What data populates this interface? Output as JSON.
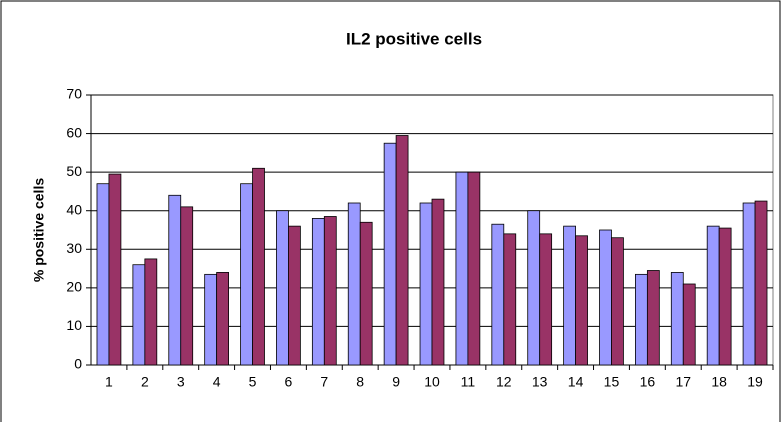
{
  "chart_data": {
    "type": "bar",
    "title": "IL2 positive cells",
    "y_label": "% positive cells",
    "categories": [
      "1",
      "2",
      "3",
      "4",
      "5",
      "6",
      "7",
      "8",
      "9",
      "10",
      "11",
      "12",
      "13",
      "14",
      "15",
      "16",
      "17",
      "18",
      "19"
    ],
    "series": [
      {
        "color": "#9999ff",
        "values": [
          47,
          26,
          44,
          23.5,
          47,
          40,
          38,
          42,
          57.5,
          42,
          50,
          36.5,
          40,
          36,
          35,
          23.5,
          24,
          36,
          42
        ]
      },
      {
        "color": "#993366",
        "values": [
          49.5,
          27.5,
          41,
          24,
          51,
          36,
          38.5,
          37,
          59.5,
          43,
          50,
          34,
          34,
          33.5,
          33,
          24.5,
          21,
          35.5,
          42.5
        ]
      }
    ],
    "ylim": [
      0,
      70
    ],
    "yticks": [
      0,
      10,
      20,
      30,
      40,
      50,
      60,
      70
    ],
    "grid": true
  }
}
